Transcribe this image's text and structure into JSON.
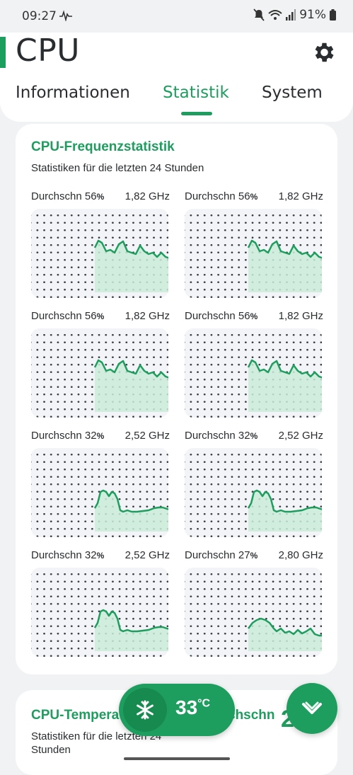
{
  "status_bar": {
    "time": "09:27",
    "battery": "91%"
  },
  "header": {
    "title": "CPU",
    "tabs": [
      {
        "label": "Informationen",
        "active": false
      },
      {
        "label": "Statistik",
        "active": true
      },
      {
        "label": "System",
        "active": false
      }
    ]
  },
  "freq_card": {
    "title": "CPU-Frequenzstatistik",
    "subtitle": "Statistiken für die letzten 24 Stunden",
    "cores": [
      {
        "avg_label": "Durchschn 56",
        "pct": "%",
        "freq": "1,82 GHz",
        "profile": "high"
      },
      {
        "avg_label": "Durchschn 56",
        "pct": "%",
        "freq": "1,82 GHz",
        "profile": "high"
      },
      {
        "avg_label": "Durchschn 56",
        "pct": "%",
        "freq": "1,82 GHz",
        "profile": "high"
      },
      {
        "avg_label": "Durchschn 56",
        "pct": "%",
        "freq": "1,82 GHz",
        "profile": "high"
      },
      {
        "avg_label": "Durchschn 32",
        "pct": "%",
        "freq": "2,52 GHz",
        "profile": "mid"
      },
      {
        "avg_label": "Durchschn 32",
        "pct": "%",
        "freq": "2,52 GHz",
        "profile": "mid"
      },
      {
        "avg_label": "Durchschn 32",
        "pct": "%",
        "freq": "2,52 GHz",
        "profile": "mid"
      },
      {
        "avg_label": "Durchschn 27",
        "pct": "%",
        "freq": "2,80 GHz",
        "profile": "low"
      }
    ]
  },
  "temp_card": {
    "title": "CPU-Temperat",
    "right_label": "chschn",
    "big_value": "2",
    "subtitle": "Statistiken für die letzten 24 Stunden"
  },
  "temp_pill": {
    "value": "33",
    "unit": "°C"
  },
  "icons": {
    "gear": "gear-icon",
    "snowflake": "snowflake-icon",
    "chevron": "double-chevron-down-icon",
    "wifi": "wifi-icon",
    "signal": "signal-icon",
    "mute": "mute-icon",
    "battery": "battery-icon"
  },
  "colors": {
    "accent": "#1e9e5e",
    "fill": "#c9ebd8",
    "background": "#f1f2f4"
  }
}
